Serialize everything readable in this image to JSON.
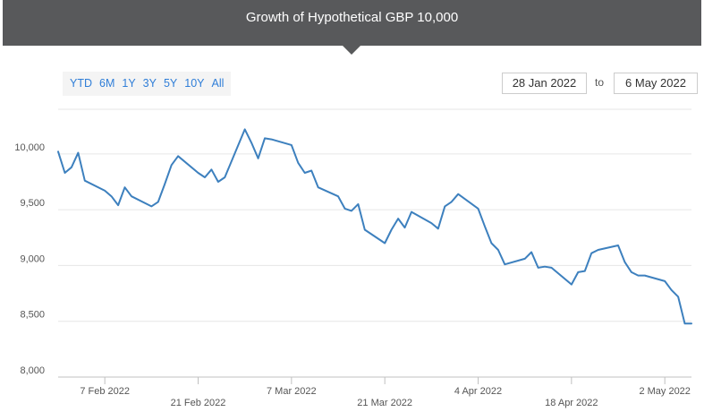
{
  "header": {
    "title": "Growth of Hypothetical GBP 10,000"
  },
  "range_selector": {
    "buttons": [
      "YTD",
      "6M",
      "1Y",
      "3Y",
      "5Y",
      "10Y",
      "All"
    ],
    "from_date": "28 Jan 2022",
    "to_label": "to",
    "to_date": "6 May 2022"
  },
  "colors": {
    "line": "#3d80be",
    "header_bg": "#58595b",
    "button_text": "#2f7ed8"
  },
  "chart_data": {
    "type": "line",
    "title": "Growth of Hypothetical GBP 10,000",
    "xlabel": "",
    "ylabel": "",
    "ylim": [
      8000,
      10400
    ],
    "x_range": [
      "2022-01-31",
      "2022-05-06"
    ],
    "y_ticks": [
      8000,
      8500,
      9000,
      9500,
      10000
    ],
    "y_tick_labels": [
      "8,000",
      "8,500",
      "9,000",
      "9,500",
      "10,000"
    ],
    "x_ticks": [
      "2022-02-07",
      "2022-02-21",
      "2022-03-07",
      "2022-03-21",
      "2022-04-04",
      "2022-04-18",
      "2022-05-02"
    ],
    "x_tick_labels": [
      "7 Feb 2022",
      "21 Feb 2022",
      "7 Mar 2022",
      "21 Mar 2022",
      "4 Apr 2022",
      "18 Apr 2022",
      "2 May 2022"
    ],
    "grid": "horizontal",
    "series": [
      {
        "x": [
          "2022-01-31",
          "2022-02-01",
          "2022-02-02",
          "2022-02-03",
          "2022-02-04",
          "2022-02-07",
          "2022-02-08",
          "2022-02-09",
          "2022-02-10",
          "2022-02-11",
          "2022-02-14",
          "2022-02-15",
          "2022-02-16",
          "2022-02-17",
          "2022-02-18",
          "2022-02-21",
          "2022-02-22",
          "2022-02-23",
          "2022-02-24",
          "2022-02-25",
          "2022-02-28",
          "2022-03-01",
          "2022-03-02",
          "2022-03-03",
          "2022-03-04",
          "2022-03-07",
          "2022-03-08",
          "2022-03-09",
          "2022-03-10",
          "2022-03-11",
          "2022-03-14",
          "2022-03-15",
          "2022-03-16",
          "2022-03-17",
          "2022-03-18",
          "2022-03-21",
          "2022-03-22",
          "2022-03-23",
          "2022-03-24",
          "2022-03-25",
          "2022-03-28",
          "2022-03-29",
          "2022-03-30",
          "2022-03-31",
          "2022-04-01",
          "2022-04-04",
          "2022-04-05",
          "2022-04-06",
          "2022-04-07",
          "2022-04-08",
          "2022-04-11",
          "2022-04-12",
          "2022-04-13",
          "2022-04-14",
          "2022-04-15",
          "2022-04-18",
          "2022-04-19",
          "2022-04-20",
          "2022-04-21",
          "2022-04-22",
          "2022-04-25",
          "2022-04-26",
          "2022-04-27",
          "2022-04-28",
          "2022-04-29",
          "2022-05-02",
          "2022-05-03",
          "2022-05-04",
          "2022-05-05",
          "2022-05-06"
        ],
        "values": [
          10020,
          9830,
          9880,
          10010,
          9760,
          9670,
          9620,
          9540,
          9700,
          9620,
          9530,
          9570,
          9730,
          9900,
          9980,
          9830,
          9790,
          9860,
          9750,
          9790,
          10220,
          10100,
          9960,
          10140,
          10130,
          10080,
          9920,
          9830,
          9850,
          9700,
          9620,
          9510,
          9490,
          9550,
          9320,
          9200,
          9320,
          9420,
          9340,
          9480,
          9380,
          9330,
          9530,
          9570,
          9640,
          9510,
          9350,
          9200,
          9140,
          9010,
          9060,
          9120,
          8980,
          8990,
          8980,
          8830,
          8940,
          8950,
          9110,
          9140,
          9180,
          9030,
          8940,
          8910,
          8910,
          8860,
          8780,
          8720,
          8480,
          8480
        ]
      }
    ]
  }
}
